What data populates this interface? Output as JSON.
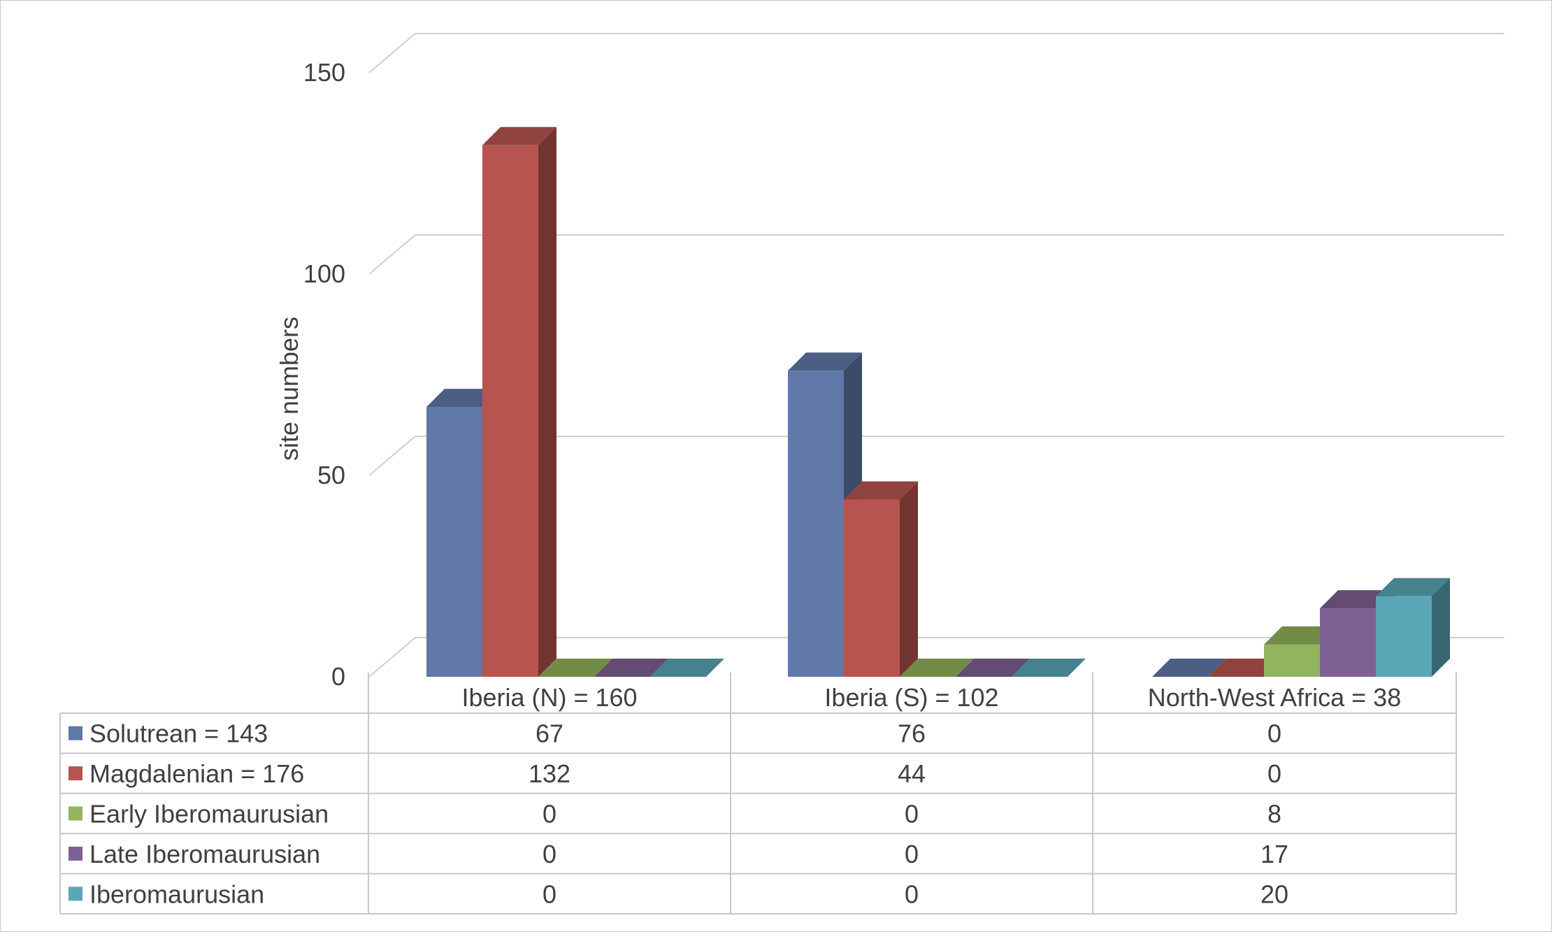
{
  "chart_data": {
    "type": "bar",
    "style": "3d-clustered-column-with-data-table",
    "title": "",
    "xlabel": "",
    "ylabel": "site numbers",
    "ylim": [
      0,
      150
    ],
    "yticks": [
      0,
      50,
      100,
      150
    ],
    "grid": true,
    "legend": "data-table",
    "categories": [
      "Iberia (N) = 160",
      "Iberia (S) = 102",
      "North-West Africa = 38"
    ],
    "series": [
      {
        "name": "Solutrean = 143",
        "values": [
          67,
          76,
          0
        ],
        "color": "#6079a8"
      },
      {
        "name": "Magdalenian = 176",
        "values": [
          132,
          44,
          0
        ],
        "color": "#b8544f"
      },
      {
        "name": "Early Iberomaurusian",
        "values": [
          0,
          0,
          8
        ],
        "color": "#92b45c"
      },
      {
        "name": "Late Iberomaurusian",
        "values": [
          0,
          0,
          17
        ],
        "color": "#7f6095"
      },
      {
        "name": "Iberomaurusian",
        "values": [
          0,
          0,
          20
        ],
        "color": "#5aa6b6"
      }
    ]
  }
}
